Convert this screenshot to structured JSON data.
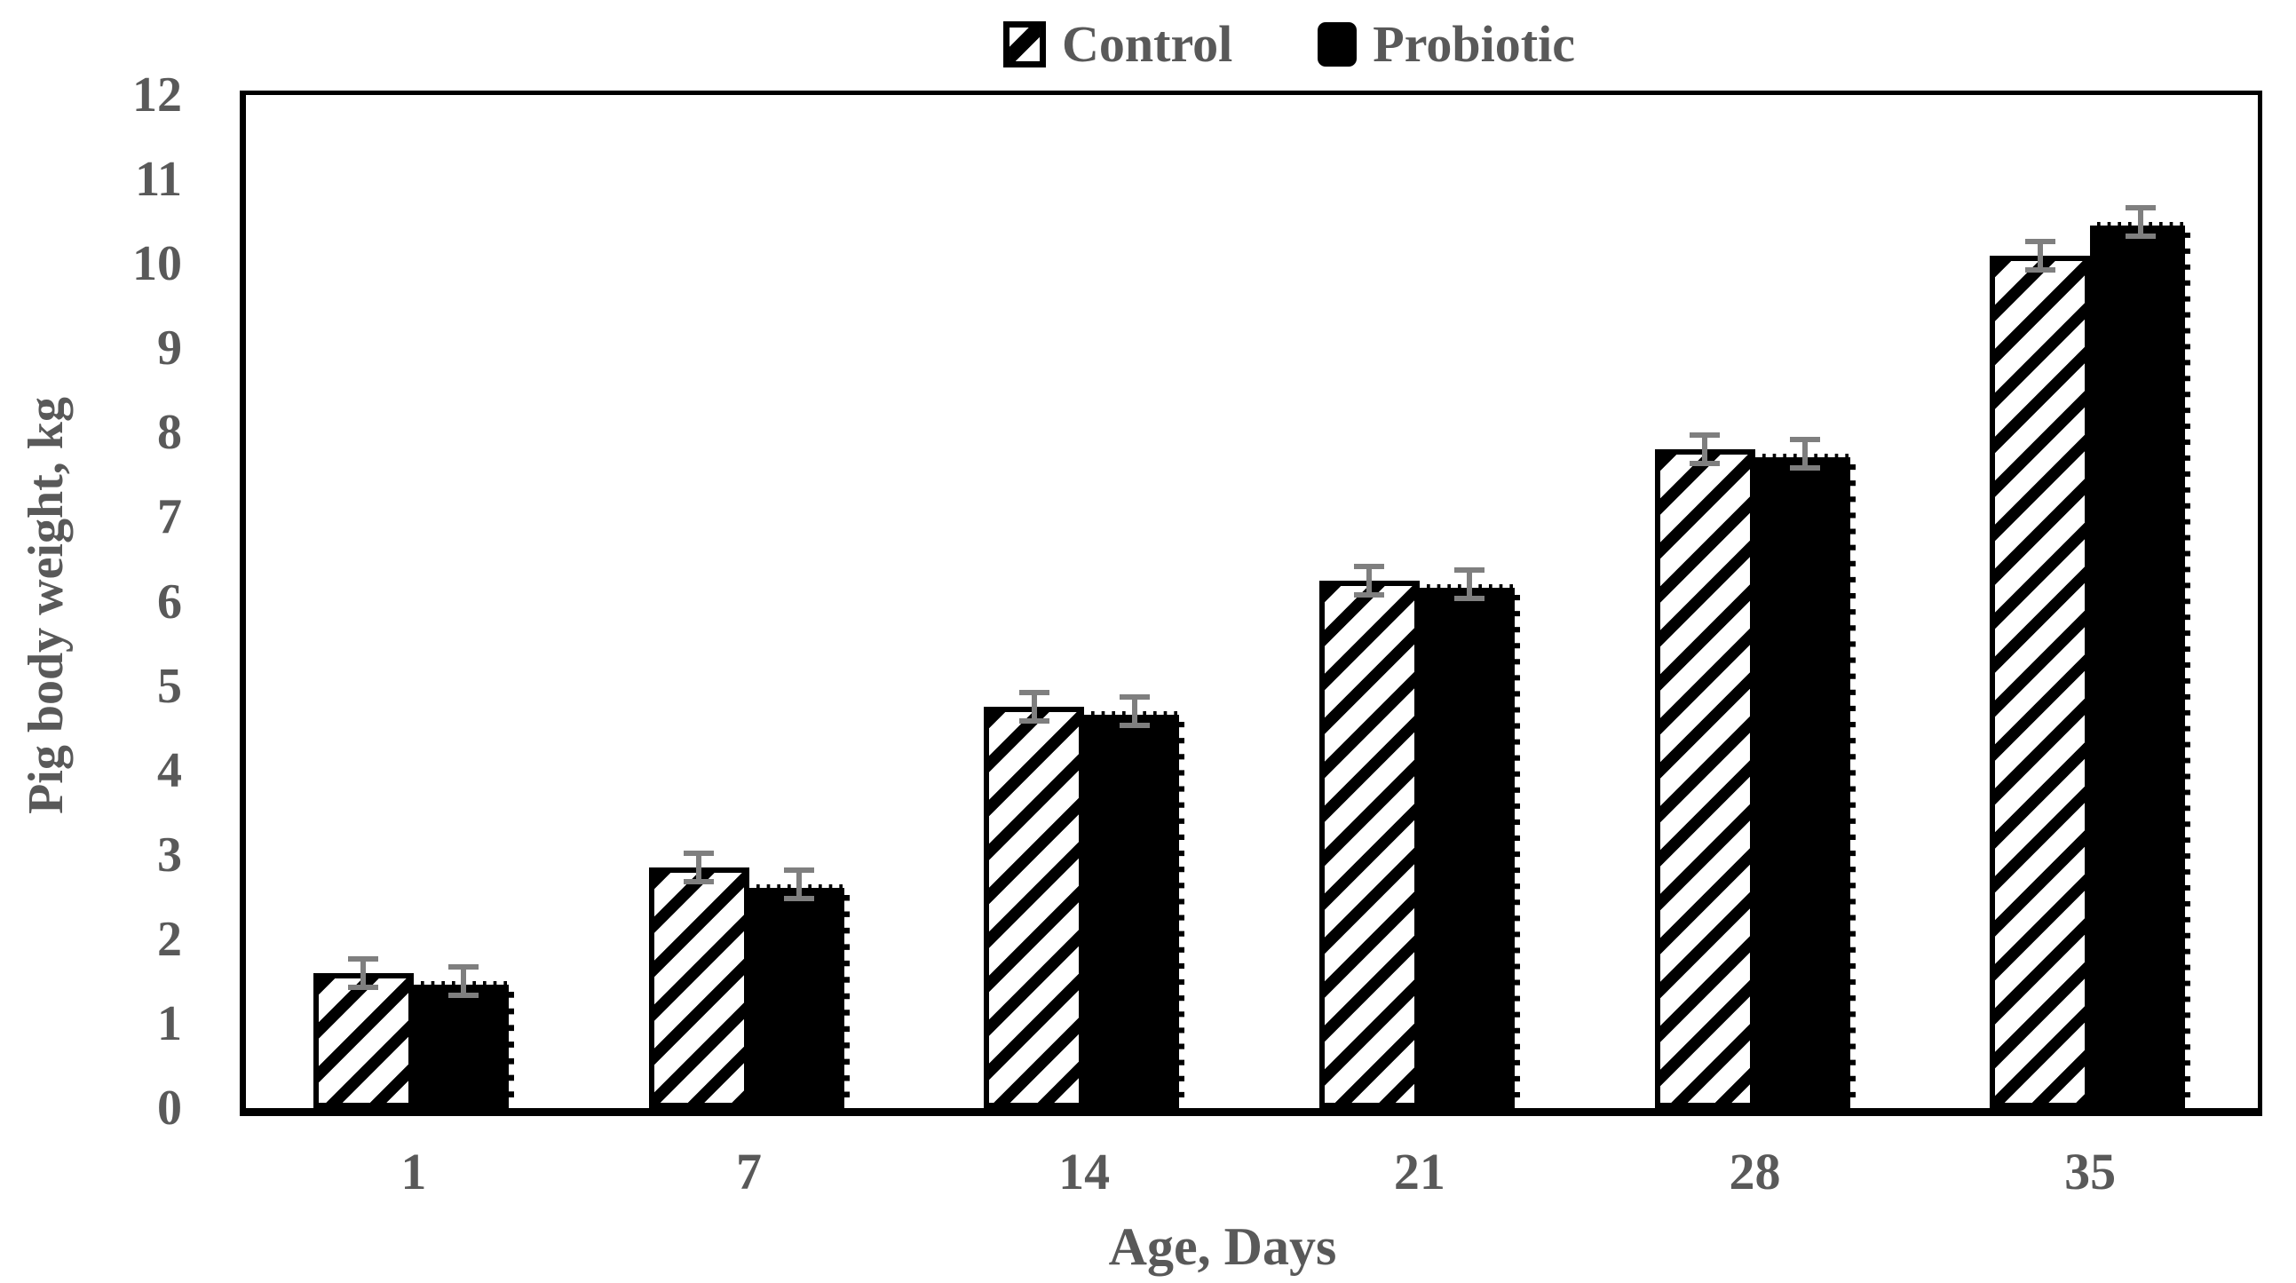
{
  "figure": {
    "background": "#ffffff",
    "text_color": "#595959",
    "axis_color": "#000000",
    "error_bar_color": "#7f7f7f"
  },
  "chart_data": {
    "type": "bar",
    "title": "",
    "xlabel": "Age, Days",
    "ylabel": "Pig body weight, kg",
    "categories": [
      "1",
      "7",
      "14",
      "21",
      "28",
      "35"
    ],
    "series": [
      {
        "name": "Control",
        "style": "white-black-diagonal-hatch",
        "values": [
          1.6,
          2.85,
          4.75,
          6.25,
          7.8,
          10.1
        ],
        "errors": [
          0.2,
          0.2,
          0.2,
          0.2,
          0.2,
          0.2
        ]
      },
      {
        "name": "Probiotic",
        "style": "solid-black",
        "values": [
          1.5,
          2.65,
          4.7,
          6.2,
          7.75,
          10.5
        ],
        "errors": [
          0.2,
          0.2,
          0.2,
          0.2,
          0.2,
          0.2
        ]
      }
    ],
    "ylim": [
      0,
      12
    ],
    "ytick_step": 1,
    "grid": false,
    "legend_position": "top",
    "error_bars": "both-directions-with-caps"
  }
}
